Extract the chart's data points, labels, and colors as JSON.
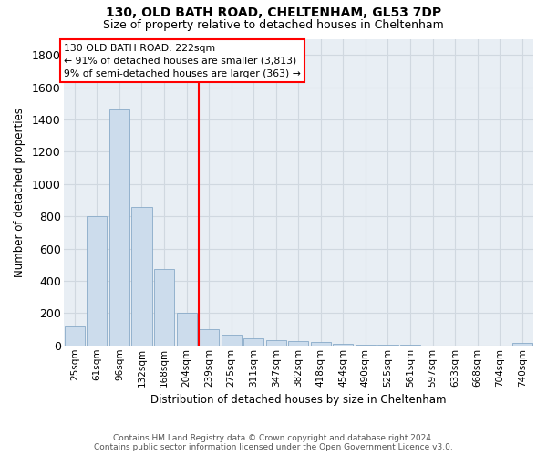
{
  "title_line1": "130, OLD BATH ROAD, CHELTENHAM, GL53 7DP",
  "title_line2": "Size of property relative to detached houses in Cheltenham",
  "xlabel": "Distribution of detached houses by size in Cheltenham",
  "ylabel": "Number of detached properties",
  "footer_line1": "Contains HM Land Registry data © Crown copyright and database right 2024.",
  "footer_line2": "Contains public sector information licensed under the Open Government Licence v3.0.",
  "categories": [
    "25sqm",
    "61sqm",
    "96sqm",
    "132sqm",
    "168sqm",
    "204sqm",
    "239sqm",
    "275sqm",
    "311sqm",
    "347sqm",
    "382sqm",
    "418sqm",
    "454sqm",
    "490sqm",
    "525sqm",
    "561sqm",
    "597sqm",
    "633sqm",
    "668sqm",
    "704sqm",
    "740sqm"
  ],
  "values": [
    120,
    800,
    1460,
    860,
    475,
    200,
    100,
    65,
    45,
    35,
    25,
    20,
    10,
    5,
    3,
    2,
    1,
    1,
    1,
    1,
    15
  ],
  "bar_color": "#ccdcec",
  "bar_edge_color": "#88aac8",
  "grid_color": "#d0d8e0",
  "vline_color": "red",
  "vline_x_index": 6.0,
  "annotation_box_text": "130 OLD BATH ROAD: 222sqm\n← 91% of detached houses are smaller (3,813)\n9% of semi-detached houses are larger (363) →",
  "ylim": [
    0,
    1900
  ],
  "yticks": [
    0,
    200,
    400,
    600,
    800,
    1000,
    1200,
    1400,
    1600,
    1800
  ],
  "background_color": "#e8eef4"
}
